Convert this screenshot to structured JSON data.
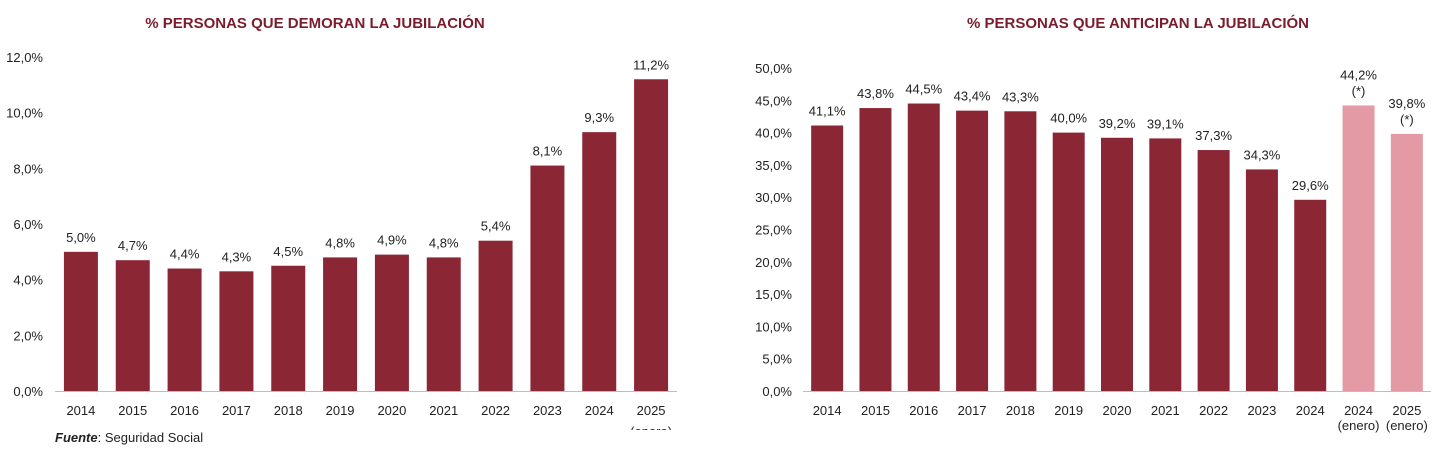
{
  "colors": {
    "bar": "#8b2735",
    "bar_light": "#e49aa5",
    "title": "#7b1c2e",
    "axis": "#bdbdbd"
  },
  "source": {
    "label": "Fuente",
    "text": ": Seguridad Social"
  },
  "chart_data": [
    {
      "type": "bar",
      "title": "% PERSONAS QUE DEMORAN LA JUBILACIÓN",
      "categories": [
        "2014",
        "2015",
        "2016",
        "2017",
        "2018",
        "2019",
        "2020",
        "2021",
        "2022",
        "2023",
        "2024",
        "2025"
      ],
      "category_sublabels": [
        "",
        "",
        "",
        "",
        "",
        "",
        "",
        "",
        "",
        "",
        "",
        "(enero)"
      ],
      "values": [
        5.0,
        4.7,
        4.4,
        4.3,
        4.5,
        4.8,
        4.9,
        4.8,
        5.4,
        8.1,
        9.3,
        11.2
      ],
      "value_labels": [
        "5,0%",
        "4,7%",
        "4,4%",
        "4,3%",
        "4,5%",
        "4,8%",
        "4,9%",
        "4,8%",
        "5,4%",
        "8,1%",
        "9,3%",
        "11,2%"
      ],
      "value_notes": [
        "",
        "",
        "",
        "",
        "",
        "",
        "",
        "",
        "",
        "",
        "",
        ""
      ],
      "highlight": [
        false,
        false,
        false,
        false,
        false,
        false,
        false,
        false,
        false,
        false,
        false,
        false
      ],
      "ylim": [
        0,
        12
      ],
      "yticks": [
        0,
        2,
        4,
        6,
        8,
        10,
        12
      ],
      "ytick_labels": [
        "0,0%",
        "2,0%",
        "4,0%",
        "6,0%",
        "8,0%",
        "10,0%",
        "12,0%"
      ],
      "xlabel": "",
      "ylabel": "",
      "grid": false
    },
    {
      "type": "bar",
      "title": "% PERSONAS QUE ANTICIPAN LA JUBILACIÓN",
      "categories": [
        "2014",
        "2015",
        "2016",
        "2017",
        "2018",
        "2019",
        "2020",
        "2021",
        "2022",
        "2023",
        "2024",
        "2024",
        "2025"
      ],
      "category_sublabels": [
        "",
        "",
        "",
        "",
        "",
        "",
        "",
        "",
        "",
        "",
        "",
        "(enero)",
        "(enero)"
      ],
      "values": [
        41.1,
        43.8,
        44.5,
        43.4,
        43.3,
        40.0,
        39.2,
        39.1,
        37.3,
        34.3,
        29.6,
        44.2,
        39.8
      ],
      "value_labels": [
        "41,1%",
        "43,8%",
        "44,5%",
        "43,4%",
        "43,3%",
        "40,0%",
        "39,2%",
        "39,1%",
        "37,3%",
        "34,3%",
        "29,6%",
        "44,2%",
        "39,8%"
      ],
      "value_notes": [
        "",
        "",
        "",
        "",
        "",
        "",
        "",
        "",
        "",
        "",
        "",
        "(*)",
        "(*)"
      ],
      "highlight": [
        false,
        false,
        false,
        false,
        false,
        false,
        false,
        false,
        false,
        false,
        false,
        true,
        true
      ],
      "ylim": [
        0,
        50
      ],
      "yticks": [
        0,
        5,
        10,
        15,
        20,
        25,
        30,
        35,
        40,
        45,
        50
      ],
      "ytick_labels": [
        "0,0%",
        "5,0%",
        "10,0%",
        "15,0%",
        "20,0%",
        "25,0%",
        "30,0%",
        "35,0%",
        "40,0%",
        "45,0%",
        "50,0%"
      ],
      "xlabel": "",
      "ylabel": "",
      "grid": false
    }
  ]
}
